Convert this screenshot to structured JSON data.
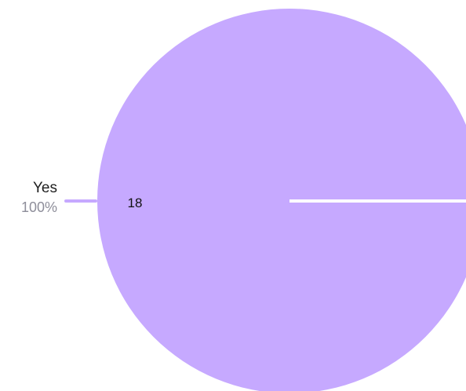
{
  "chart_data": {
    "type": "pie",
    "slices": [
      {
        "label": "Yes",
        "value": 18,
        "percent_label": "100%",
        "value_label": "18",
        "color": "#c6a9ff"
      }
    ],
    "colors": {
      "slice": "#c6a9ff",
      "separator": "#ffffff",
      "value_text": "#111111",
      "label_text": "#1f1f1f",
      "percent_text": "#8e8e9a"
    }
  }
}
